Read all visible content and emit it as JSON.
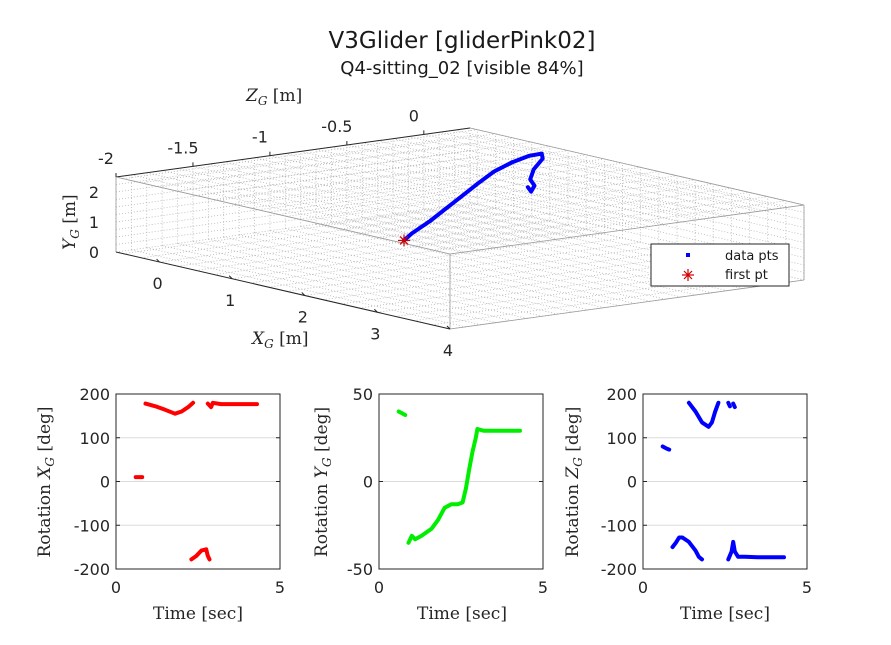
{
  "figure": {
    "title": "V3Glider [gliderPink02]",
    "subtitle": "Q4-sitting_02 [visible 84%]"
  },
  "chart_data": [
    {
      "type": "scatter",
      "projection": "3d",
      "x_label": "X_G [m]",
      "y_label": "Y_G [m]",
      "z_label": "Z_G [m]",
      "x_ticks": [
        "0",
        "1",
        "2",
        "3",
        "4"
      ],
      "y_ticks": [
        "0",
        "1",
        "2"
      ],
      "z_ticks": [
        "-2",
        "-1.5",
        "-1",
        "-0.5",
        "0"
      ],
      "xlim": [
        -0.6,
        4
      ],
      "ylim": [
        0,
        2.5
      ],
      "zlim": [
        -2,
        0.3
      ],
      "grid": true,
      "legend": {
        "placement": "right",
        "entries": [
          {
            "label": "data pts",
            "marker": "square",
            "color": "#0000ff"
          },
          {
            "label": "first pt",
            "marker": "asterisk",
            "color": "#cc0000"
          }
        ]
      },
      "series": [
        {
          "name": "data pts",
          "color": "#0000ff",
          "points": [
            [
              3.35,
              0.12,
              0.28
            ],
            [
              3.4,
              0.3,
              0.26
            ],
            [
              3.5,
              0.6,
              0.2
            ],
            [
              3.58,
              0.9,
              0.14
            ],
            [
              3.66,
              1.2,
              0.08
            ],
            [
              3.74,
              1.5,
              0.02
            ],
            [
              3.82,
              1.78,
              -0.04
            ],
            [
              3.92,
              2.0,
              -0.1
            ],
            [
              4.02,
              2.15,
              -0.15
            ],
            [
              4.1,
              2.2,
              -0.18
            ],
            [
              4.12,
              2.08,
              -0.17
            ],
            [
              4.06,
              1.8,
              -0.15
            ],
            [
              4.05,
              1.55,
              -0.13
            ],
            [
              4.1,
              1.4,
              -0.12
            ],
            [
              4.08,
              1.25,
              -0.11
            ],
            [
              4.04,
              1.35,
              -0.12
            ]
          ]
        },
        {
          "name": "first pt",
          "color": "#cc0000",
          "points": [
            [
              3.35,
              0.12,
              0.28
            ]
          ]
        }
      ]
    },
    {
      "type": "line",
      "x_label": "Time [sec]",
      "y_label": "Rotation X_G [deg]",
      "xlim": [
        0,
        5
      ],
      "ylim": [
        -200,
        200
      ],
      "x_ticks": [
        "0",
        "5"
      ],
      "y_ticks": [
        "200",
        "100",
        "0",
        "-100",
        "-200"
      ],
      "grid": true,
      "series": [
        {
          "color": "#ff0000",
          "segments": [
            [
              [
                0.6,
                10
              ],
              [
                0.8,
                10
              ]
            ],
            [
              [
                0.9,
                178
              ],
              [
                1.2,
                172
              ],
              [
                1.5,
                164
              ],
              [
                1.8,
                155
              ],
              [
                2.0,
                160
              ],
              [
                2.2,
                170
              ],
              [
                2.35,
                180
              ]
            ],
            [
              [
                2.3,
                -178
              ],
              [
                2.45,
                -170
              ],
              [
                2.6,
                -158
              ],
              [
                2.75,
                -155
              ],
              [
                2.8,
                -170
              ],
              [
                2.85,
                -178
              ]
            ],
            [
              [
                2.8,
                178
              ],
              [
                2.9,
                170
              ],
              [
                2.95,
                180
              ],
              [
                3.2,
                177
              ],
              [
                3.6,
                177
              ],
              [
                4.0,
                177
              ],
              [
                4.3,
                177
              ]
            ]
          ]
        }
      ]
    },
    {
      "type": "line",
      "x_label": "Time [sec]",
      "y_label": "Rotation Y_G [deg]",
      "xlim": [
        0,
        5
      ],
      "ylim": [
        -50,
        50
      ],
      "x_ticks": [
        "0",
        "5"
      ],
      "y_ticks": [
        "50",
        "0",
        "-50"
      ],
      "grid": true,
      "series": [
        {
          "color": "#00ee00",
          "segments": [
            [
              [
                0.6,
                40
              ],
              [
                0.7,
                39
              ],
              [
                0.8,
                38
              ]
            ],
            [
              [
                0.9,
                -35
              ],
              [
                1.0,
                -31
              ],
              [
                1.1,
                -33
              ],
              [
                1.3,
                -31
              ],
              [
                1.6,
                -27
              ],
              [
                1.8,
                -22
              ],
              [
                2.0,
                -15
              ],
              [
                2.2,
                -13
              ],
              [
                2.4,
                -13
              ],
              [
                2.55,
                -12
              ],
              [
                2.65,
                -4
              ],
              [
                2.75,
                7
              ],
              [
                2.85,
                17
              ],
              [
                2.95,
                25
              ],
              [
                3.0,
                30
              ],
              [
                3.2,
                29
              ],
              [
                3.6,
                29
              ],
              [
                4.0,
                29
              ],
              [
                4.3,
                29
              ]
            ]
          ]
        }
      ]
    },
    {
      "type": "line",
      "x_label": "Time [sec]",
      "y_label": "Rotation Z_G [deg]",
      "xlim": [
        0,
        5
      ],
      "ylim": [
        -200,
        200
      ],
      "x_ticks": [
        "0",
        "5"
      ],
      "y_ticks": [
        "200",
        "100",
        "0",
        "-100",
        "-200"
      ],
      "grid": true,
      "series": [
        {
          "color": "#0000ff",
          "segments": [
            [
              [
                0.6,
                80
              ],
              [
                0.7,
                76
              ],
              [
                0.8,
                73
              ]
            ],
            [
              [
                0.9,
                -150
              ],
              [
                1.0,
                -140
              ],
              [
                1.1,
                -128
              ],
              [
                1.2,
                -128
              ],
              [
                1.4,
                -138
              ],
              [
                1.6,
                -158
              ],
              [
                1.7,
                -172
              ],
              [
                1.8,
                -178
              ]
            ],
            [
              [
                1.4,
                180
              ],
              [
                1.6,
                160
              ],
              [
                1.8,
                135
              ],
              [
                2.0,
                125
              ],
              [
                2.1,
                135
              ],
              [
                2.2,
                160
              ],
              [
                2.3,
                180
              ]
            ],
            [
              [
                2.6,
                180
              ],
              [
                2.65,
                172
              ]
            ],
            [
              [
                2.75,
                178
              ],
              [
                2.8,
                170
              ]
            ],
            [
              [
                2.6,
                -178
              ],
              [
                2.7,
                -160
              ],
              [
                2.75,
                -138
              ],
              [
                2.8,
                -160
              ],
              [
                2.9,
                -172
              ],
              [
                3.1,
                -172
              ],
              [
                3.5,
                -173
              ],
              [
                4.0,
                -173
              ],
              [
                4.3,
                -173
              ]
            ]
          ]
        }
      ]
    }
  ]
}
